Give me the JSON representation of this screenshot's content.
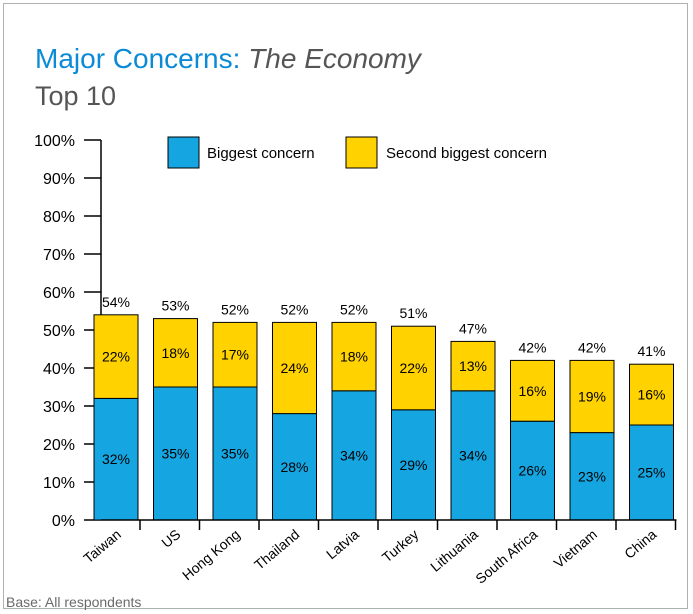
{
  "header": {
    "title_main": "Major Concerns: ",
    "title_italic": "The Economy",
    "subtitle": "Top 10"
  },
  "footnote": "Base: All respondents",
  "colors": {
    "biggest": "#15a6e2",
    "second": "#ffd200",
    "title": "#0b8ad6",
    "axis": "#000000"
  },
  "chart_data": {
    "type": "bar",
    "stacked": true,
    "title": "Major Concerns: The Economy",
    "subtitle": "Top 10",
    "categories": [
      "Taiwan",
      "US",
      "Hong Kong",
      "Thailand",
      "Latvia",
      "Turkey",
      "Lithuania",
      "South Africa",
      "Vietnam",
      "China"
    ],
    "series": [
      {
        "name": "Biggest concern",
        "values": [
          32,
          35,
          35,
          28,
          34,
          29,
          34,
          26,
          23,
          25
        ]
      },
      {
        "name": "Second biggest concern",
        "values": [
          22,
          18,
          17,
          24,
          18,
          22,
          13,
          16,
          19,
          16
        ]
      }
    ],
    "totals": [
      54,
      53,
      52,
      52,
      52,
      51,
      47,
      42,
      42,
      41
    ],
    "y_ticks": [
      "0%",
      "10%",
      "20%",
      "30%",
      "40%",
      "50%",
      "60%",
      "70%",
      "80%",
      "90%",
      "100%"
    ],
    "ylim": [
      0,
      100
    ],
    "legend_position": "top",
    "grid": false
  }
}
